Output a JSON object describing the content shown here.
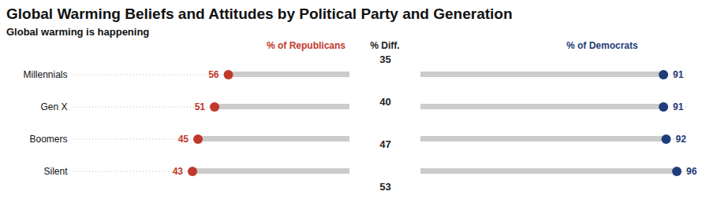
{
  "chart_data": {
    "type": "dot",
    "title": "Global Warming Beliefs and Attitudes by Political Party and Generation",
    "subtitle": "Global warming is happening",
    "orientation": "horizontal",
    "categories": [
      "Millennials",
      "Gen X",
      "Boomers",
      "Silent"
    ],
    "series": [
      {
        "name": "% of Republicans",
        "color": "#c0392b",
        "values": [
          56,
          51,
          45,
          43
        ]
      },
      {
        "name": "% of Democrats",
        "color": "#1f3d7a",
        "values": [
          91,
          91,
          92,
          96
        ]
      }
    ],
    "diff": {
      "name": "% Diff.",
      "color": "#222222",
      "values": [
        35,
        40,
        47,
        53
      ]
    },
    "color": "#cccccc",
    "xlim": [
      0,
      100
    ],
    "data_labels": true,
    "tick_labels": "y"
  }
}
